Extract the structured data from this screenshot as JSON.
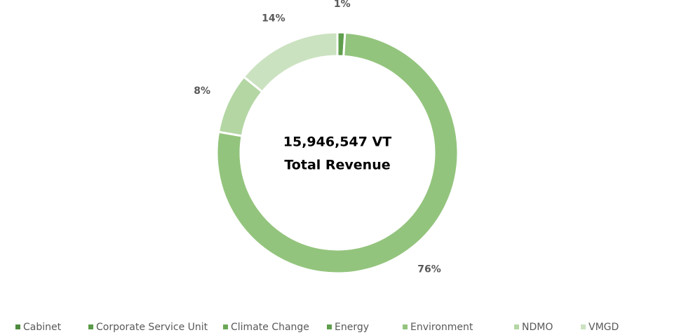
{
  "chart_data": {
    "type": "donut",
    "annotations": [
      "15,946,547 VT",
      "Total Revenue"
    ],
    "categories": [
      "Cabinet",
      "Corporate Service Unit",
      "Climate Change",
      "Energy",
      "Environment",
      "NDMO",
      "VMGD"
    ],
    "values": [
      0,
      0,
      0,
      1,
      76,
      8,
      14
    ],
    "value_labels": [
      null,
      null,
      null,
      "1%",
      "76%",
      "8%",
      "14%"
    ],
    "colors": [
      "#4e8a3e",
      "#5a9a48",
      "#6aa855",
      "#5e9e4c",
      "#93c47d",
      "#b3d6a3",
      "#cbe2c0"
    ],
    "legend": "bottom"
  }
}
